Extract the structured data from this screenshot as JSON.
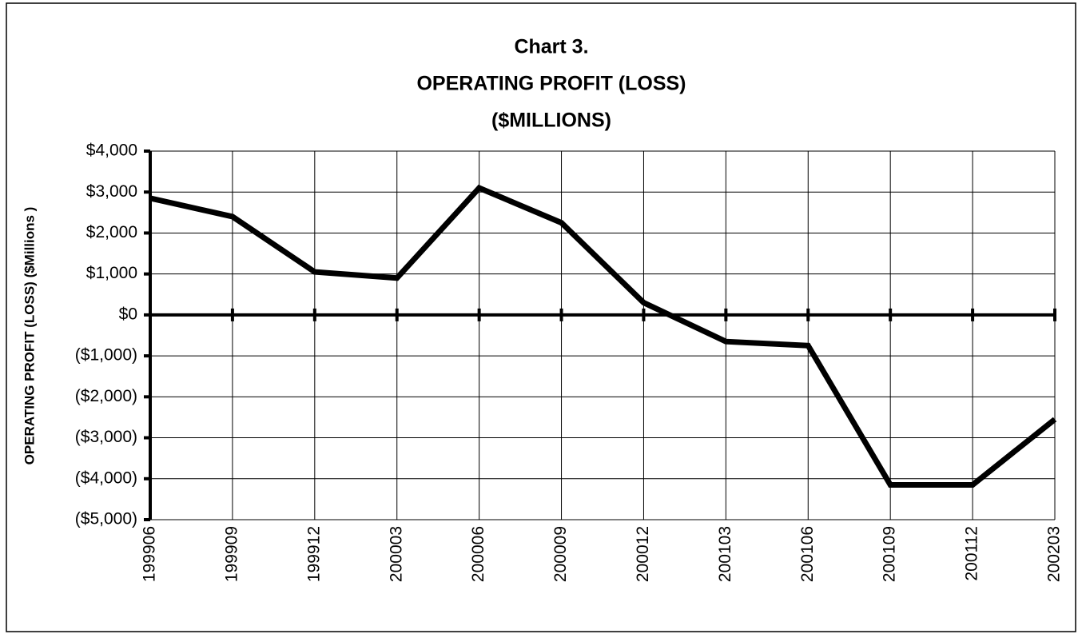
{
  "chart_data": {
    "type": "line",
    "title": [
      "Chart 3.",
      "OPERATING PROFIT (LOSS)",
      "($MILLIONS)"
    ],
    "y_label": "OPERATING PROFIT (LOSS) ($Millions )",
    "categories": [
      "199906",
      "199909",
      "199912",
      "200003",
      "200006",
      "200009",
      "200012",
      "200103",
      "200106",
      "200109",
      "200112",
      "200203"
    ],
    "series": [
      {
        "color": "#000000",
        "values": [
          2850,
          2400,
          1050,
          900,
          3100,
          2250,
          300,
          -650,
          -750,
          -4150,
          -4150,
          -2550
        ]
      }
    ],
    "ylim": [
      -5000,
      4000
    ],
    "yticks": [
      {
        "value": -5000,
        "label": "($5,000)"
      },
      {
        "value": -4000,
        "label": "($4,000)"
      },
      {
        "value": -3000,
        "label": "($3,000)"
      },
      {
        "value": -2000,
        "label": "($2,000)"
      },
      {
        "value": -1000,
        "label": "($1,000)"
      },
      {
        "value": 0,
        "label": "$0"
      },
      {
        "value": 1000,
        "label": "$1,000"
      },
      {
        "value": 2000,
        "label": "$2,000"
      },
      {
        "value": 3000,
        "label": "$3,000"
      },
      {
        "value": 4000,
        "label": "$4,000"
      }
    ],
    "grid": true
  }
}
